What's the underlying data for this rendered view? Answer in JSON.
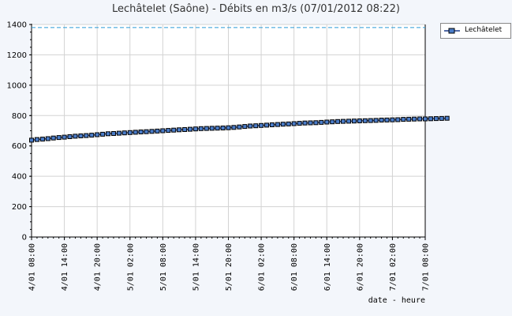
{
  "chart_data": {
    "type": "line",
    "title": "Lechâtelet (Saône) - Débits en m3/s (07/01/2012 08:22)",
    "xlabel": "date - heure",
    "ylabel": "",
    "ylim": [
      0,
      1400
    ],
    "yticks": [
      0,
      200,
      400,
      600,
      800,
      1000,
      1200,
      1400
    ],
    "xticks": [
      "4/01  08:00",
      "4/01  14:00",
      "4/01  20:00",
      "5/01  02:00",
      "5/01  08:00",
      "5/01  14:00",
      "5/01  20:00",
      "6/01  02:00",
      "6/01  08:00",
      "6/01  14:00",
      "6/01  20:00",
      "7/01  02:00",
      "7/01  08:00"
    ],
    "grid": true,
    "legend_position": "top-right",
    "reference_line": 1380,
    "series": [
      {
        "name": "Lechâtelet",
        "x_start": "4/01 08:00",
        "step_hours": 1,
        "values": [
          638,
          642,
          645,
          648,
          652,
          655,
          658,
          661,
          664,
          666,
          668,
          671,
          674,
          677,
          680,
          682,
          684,
          686,
          688,
          690,
          692,
          694,
          696,
          698,
          700,
          702,
          704,
          706,
          708,
          710,
          712,
          714,
          715,
          716,
          717,
          718,
          720,
          722,
          725,
          728,
          731,
          733,
          735,
          737,
          739,
          741,
          743,
          745,
          747,
          749,
          751,
          752,
          753,
          755,
          757,
          759,
          761,
          762,
          763,
          764,
          765,
          766,
          767,
          768,
          770,
          771,
          772,
          773,
          775,
          776,
          777,
          778,
          778,
          779,
          780,
          781,
          782
        ]
      }
    ]
  },
  "colors": {
    "series": "#1a3a8a",
    "marker_fill": "#4a7cc8",
    "grid": "#d3d3d3",
    "reference": "#2a9ad8"
  }
}
